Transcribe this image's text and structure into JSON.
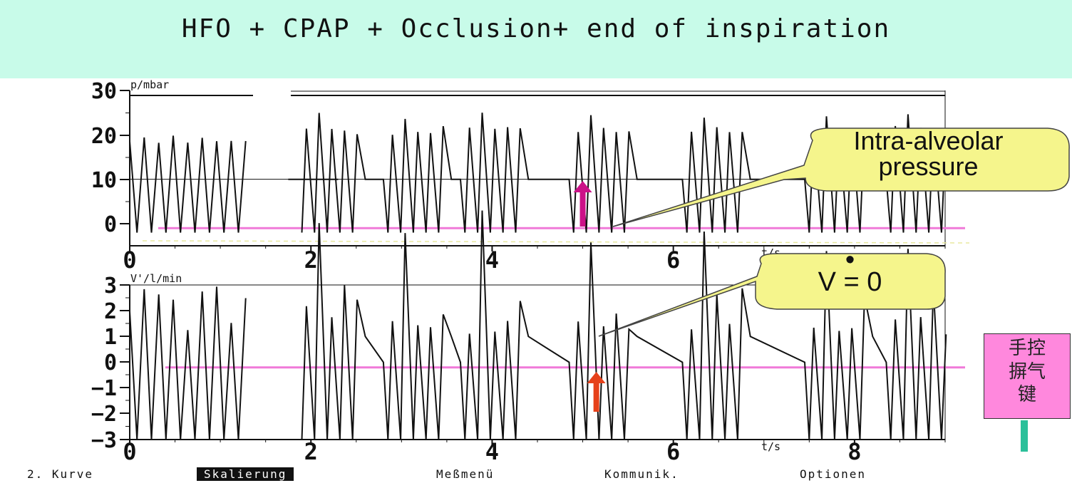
{
  "banner": {
    "title": "HFO + CPAP + Occlusion+  end of inspiration"
  },
  "chart_data": [
    {
      "type": "line",
      "ylabel": "p/mbar",
      "xlabel": "t/s",
      "xlim": [
        0,
        9
      ],
      "ylim": [
        -5,
        30
      ],
      "x_ticks": [
        "0",
        "2",
        "4",
        "6"
      ],
      "y_ticks": [
        "30",
        "20",
        "10",
        "0"
      ],
      "reference_lines": [
        10,
        -1
      ],
      "reference_line_color": "#f07ad8",
      "series": [
        {
          "values_description_free": true,
          "segments": [
            {
              "x": [
                0.0,
                1.35
              ],
              "mode": "oscillation",
              "low": -2,
              "high": 20,
              "period": 0.16
            },
            {
              "x": [
                1.75,
                2.3
              ],
              "mode": "plateau",
              "level": 10
            },
            {
              "x": [
                2.3,
                9.0
              ],
              "mode": "bursts",
              "low": -2,
              "high": 22,
              "plateau": 10,
              "burst_starts": [
                1.9,
                2.85,
                3.7,
                4.9,
                6.15,
                7.5,
                8.4
              ]
            }
          ]
        }
      ],
      "annotations": [
        {
          "text_lines": [
            "Intra-alveolar",
            "pressure"
          ],
          "color": "#f5f58c"
        }
      ],
      "markers": [
        {
          "x": 5.0,
          "color": "#cc1188"
        }
      ]
    },
    {
      "type": "line",
      "ylabel": "V'/l/min",
      "xlabel": "t/s",
      "xlim": [
        0,
        9
      ],
      "ylim": [
        -3,
        3
      ],
      "x_ticks": [
        "0",
        "2",
        "4",
        "6",
        "8"
      ],
      "y_ticks": [
        "3",
        "2",
        "1",
        "0",
        "-1",
        "-2",
        "-3"
      ],
      "reference_lines": [
        -0.2
      ],
      "reference_line_color": "#f07ad8",
      "series": [
        {
          "segments": [
            {
              "x": [
                0.0,
                1.35
              ],
              "mode": "oscillation",
              "low": -3,
              "high": 3,
              "period": 0.16
            },
            {
              "x": [
                1.75,
                9.0
              ],
              "mode": "bursts",
              "low": -3,
              "high": 3,
              "plateau": 0,
              "burst_starts": [
                1.9,
                2.85,
                3.7,
                4.9,
                6.15,
                7.5,
                8.4
              ]
            }
          ]
        }
      ],
      "annotations": [
        {
          "text_lines": [
            "•",
            "V = 0"
          ],
          "color": "#f5f58c"
        }
      ],
      "markers": [
        {
          "x": 5.15,
          "color": "#e6411a"
        }
      ]
    }
  ],
  "side_note": {
    "lines": [
      "手控",
      "摒气",
      "键"
    ],
    "color": "#ff88dd"
  },
  "menu": {
    "items": [
      "2. Kurve",
      "Skalierung",
      "Meßmenü",
      "Kommunik.",
      "Optionen"
    ],
    "active_index": 1
  }
}
